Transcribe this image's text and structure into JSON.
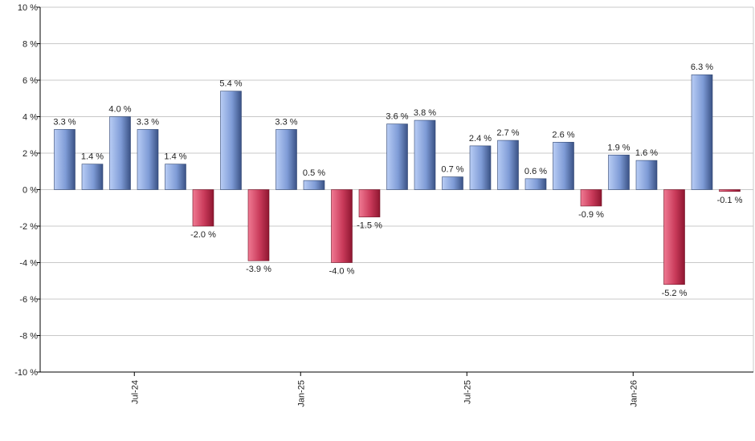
{
  "chart_data": {
    "type": "bar",
    "values": [
      3.3,
      1.4,
      4.0,
      3.3,
      1.4,
      -2.0,
      5.4,
      -3.9,
      3.3,
      0.5,
      -4.0,
      -1.5,
      3.6,
      3.8,
      0.7,
      2.4,
      2.7,
      0.6,
      2.6,
      -0.9,
      1.9,
      1.6,
      -5.2,
      6.3,
      -0.1
    ],
    "value_labels": [
      "3.3 %",
      "1.4 %",
      "4.0 %",
      "3.3 %",
      "1.4 %",
      "-2.0 %",
      "5.4 %",
      "-3.9 %",
      "3.3 %",
      "0.5 %",
      "-4.0 %",
      "-1.5 %",
      "3.6 %",
      "3.8 %",
      "0.7 %",
      "2.4 %",
      "2.7 %",
      "0.6 %",
      "2.6 %",
      "-0.9 %",
      "1.9 %",
      "1.6 %",
      "-5.2 %",
      "6.3 %",
      "-0.1 %"
    ],
    "x_ticks": [
      {
        "label": "Jul-24",
        "index": 2
      },
      {
        "label": "Jan-25",
        "index": 8
      },
      {
        "label": "Jul-25",
        "index": 14
      },
      {
        "label": "Jan-26",
        "index": 20
      }
    ],
    "y_ticks": [
      "10 %",
      "8 %",
      "6 %",
      "4 %",
      "2 %",
      "0 %",
      "-2 %",
      "-4 %",
      "-6 %",
      "-8 %",
      "-10 %"
    ],
    "y_tick_values": [
      10,
      8,
      6,
      4,
      2,
      0,
      -2,
      -4,
      -6,
      -8,
      -10
    ],
    "ylim": [
      -10,
      10
    ],
    "grid": true,
    "colors": {
      "positive_light": "#b9cdf5",
      "positive_dark": "#3a5285",
      "negative_light": "#f07a93",
      "negative_dark": "#8e1630",
      "grid": "#c8c8c8",
      "axis": "#000000"
    }
  }
}
